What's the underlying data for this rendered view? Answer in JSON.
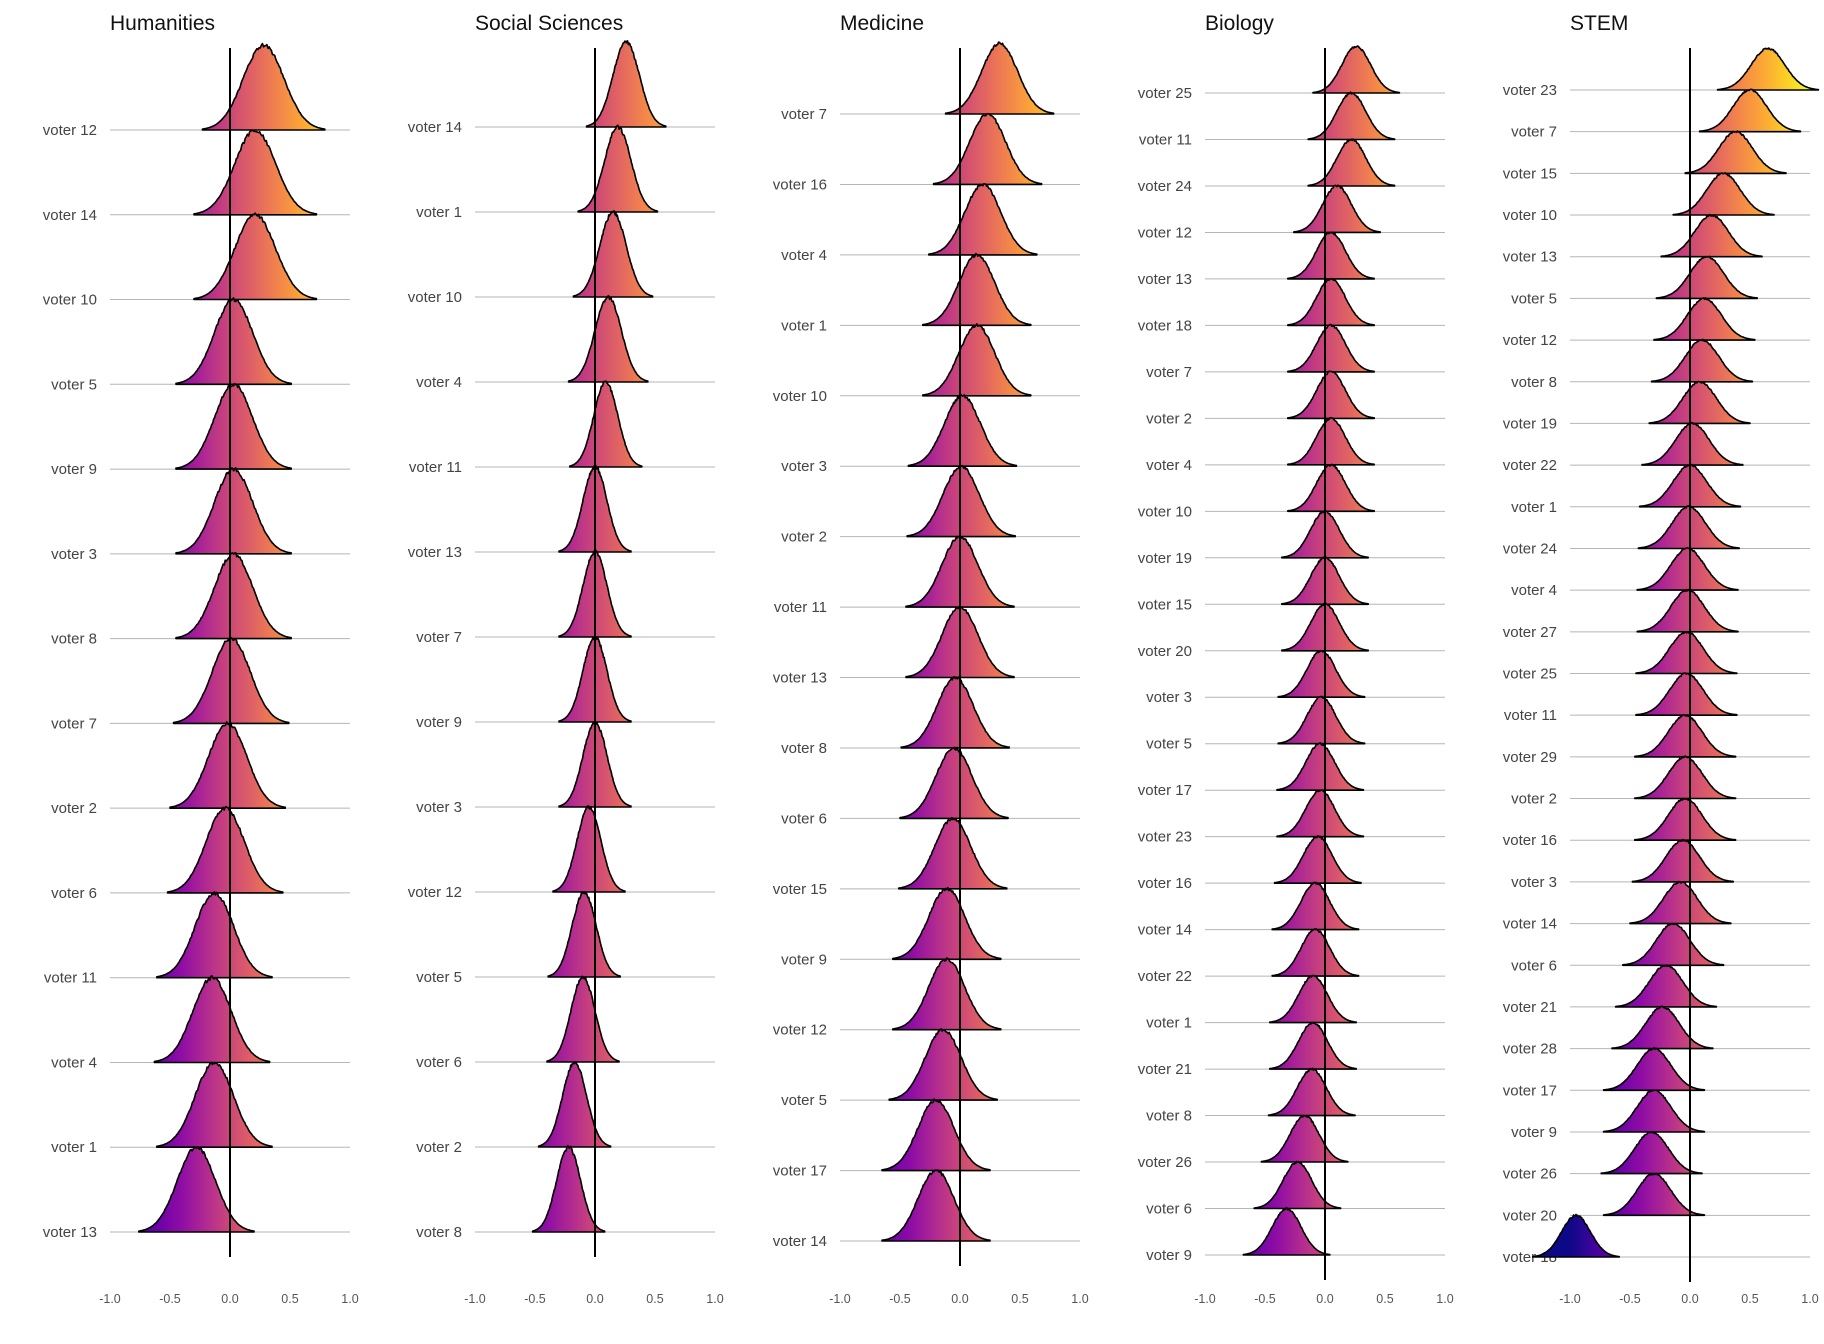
{
  "chart_data": {
    "type": "ridgeline",
    "xlim": [
      -1.0,
      1.0
    ],
    "x_ticks": [
      "-1.0",
      "-0.5",
      "0.0",
      "0.5",
      "1.0"
    ],
    "reference_line_x": 0.0,
    "color_scale": "plasma",
    "panels": [
      {
        "title": "Humanities",
        "series": [
          {
            "label": "voter 12",
            "mean": 0.28,
            "sd": 0.17
          },
          {
            "label": "voter 14",
            "mean": 0.21,
            "sd": 0.17
          },
          {
            "label": "voter 10",
            "mean": 0.21,
            "sd": 0.17
          },
          {
            "label": "voter 5",
            "mean": 0.03,
            "sd": 0.16
          },
          {
            "label": "voter 9",
            "mean": 0.03,
            "sd": 0.16
          },
          {
            "label": "voter 3",
            "mean": 0.03,
            "sd": 0.16
          },
          {
            "label": "voter 8",
            "mean": 0.03,
            "sd": 0.16
          },
          {
            "label": "voter 7",
            "mean": 0.01,
            "sd": 0.16
          },
          {
            "label": "voter 2",
            "mean": -0.02,
            "sd": 0.16
          },
          {
            "label": "voter 6",
            "mean": -0.04,
            "sd": 0.16
          },
          {
            "label": "voter 11",
            "mean": -0.13,
            "sd": 0.16
          },
          {
            "label": "voter 4",
            "mean": -0.15,
            "sd": 0.16
          },
          {
            "label": "voter 1",
            "mean": -0.13,
            "sd": 0.16
          },
          {
            "label": "voter 13",
            "mean": -0.28,
            "sd": 0.16
          }
        ]
      },
      {
        "title": "Social Sciences",
        "series": [
          {
            "label": "voter 14",
            "mean": 0.26,
            "sd": 0.11
          },
          {
            "label": "voter 1",
            "mean": 0.19,
            "sd": 0.11
          },
          {
            "label": "voter 10",
            "mean": 0.15,
            "sd": 0.11
          },
          {
            "label": "voter 4",
            "mean": 0.11,
            "sd": 0.11
          },
          {
            "label": "voter 11",
            "mean": 0.09,
            "sd": 0.1
          },
          {
            "label": "voter 13",
            "mean": 0.0,
            "sd": 0.1
          },
          {
            "label": "voter 7",
            "mean": 0.0,
            "sd": 0.1
          },
          {
            "label": "voter 9",
            "mean": 0.0,
            "sd": 0.1
          },
          {
            "label": "voter 3",
            "mean": 0.0,
            "sd": 0.1
          },
          {
            "label": "voter 12",
            "mean": -0.05,
            "sd": 0.1
          },
          {
            "label": "voter 5",
            "mean": -0.09,
            "sd": 0.1
          },
          {
            "label": "voter 6",
            "mean": -0.1,
            "sd": 0.1
          },
          {
            "label": "voter 2",
            "mean": -0.17,
            "sd": 0.1
          },
          {
            "label": "voter 8",
            "mean": -0.22,
            "sd": 0.1
          }
        ]
      },
      {
        "title": "Medicine",
        "series": [
          {
            "label": "voter 7",
            "mean": 0.33,
            "sd": 0.15
          },
          {
            "label": "voter 16",
            "mean": 0.23,
            "sd": 0.15
          },
          {
            "label": "voter 4",
            "mean": 0.19,
            "sd": 0.15
          },
          {
            "label": "voter 1",
            "mean": 0.14,
            "sd": 0.15
          },
          {
            "label": "voter 10",
            "mean": 0.14,
            "sd": 0.15
          },
          {
            "label": "voter 3",
            "mean": 0.02,
            "sd": 0.15
          },
          {
            "label": "voter 2",
            "mean": 0.01,
            "sd": 0.15
          },
          {
            "label": "voter 11",
            "mean": 0.0,
            "sd": 0.15
          },
          {
            "label": "voter 13",
            "mean": 0.0,
            "sd": 0.15
          },
          {
            "label": "voter 8",
            "mean": -0.04,
            "sd": 0.15
          },
          {
            "label": "voter 6",
            "mean": -0.05,
            "sd": 0.15
          },
          {
            "label": "voter 15",
            "mean": -0.06,
            "sd": 0.15
          },
          {
            "label": "voter 9",
            "mean": -0.11,
            "sd": 0.15
          },
          {
            "label": "voter 12",
            "mean": -0.11,
            "sd": 0.15
          },
          {
            "label": "voter 5",
            "mean": -0.14,
            "sd": 0.15
          },
          {
            "label": "voter 17",
            "mean": -0.2,
            "sd": 0.15
          },
          {
            "label": "voter 14",
            "mean": -0.2,
            "sd": 0.15
          }
        ]
      },
      {
        "title": "Biology",
        "series": [
          {
            "label": "voter 25",
            "mean": 0.26,
            "sd": 0.12
          },
          {
            "label": "voter 11",
            "mean": 0.22,
            "sd": 0.12
          },
          {
            "label": "voter 24",
            "mean": 0.22,
            "sd": 0.12
          },
          {
            "label": "voter 12",
            "mean": 0.1,
            "sd": 0.12
          },
          {
            "label": "voter 13",
            "mean": 0.05,
            "sd": 0.12
          },
          {
            "label": "voter 18",
            "mean": 0.05,
            "sd": 0.12
          },
          {
            "label": "voter 7",
            "mean": 0.05,
            "sd": 0.12
          },
          {
            "label": "voter 2",
            "mean": 0.05,
            "sd": 0.12
          },
          {
            "label": "voter 4",
            "mean": 0.05,
            "sd": 0.12
          },
          {
            "label": "voter 10",
            "mean": 0.05,
            "sd": 0.12
          },
          {
            "label": "voter 19",
            "mean": 0.0,
            "sd": 0.12
          },
          {
            "label": "voter 15",
            "mean": 0.0,
            "sd": 0.12
          },
          {
            "label": "voter 20",
            "mean": 0.0,
            "sd": 0.12
          },
          {
            "label": "voter 3",
            "mean": -0.03,
            "sd": 0.12
          },
          {
            "label": "voter 5",
            "mean": -0.03,
            "sd": 0.12
          },
          {
            "label": "voter 17",
            "mean": -0.04,
            "sd": 0.12
          },
          {
            "label": "voter 23",
            "mean": -0.04,
            "sd": 0.12
          },
          {
            "label": "voter 16",
            "mean": -0.06,
            "sd": 0.12
          },
          {
            "label": "voter 14",
            "mean": -0.08,
            "sd": 0.12
          },
          {
            "label": "voter 22",
            "mean": -0.08,
            "sd": 0.12
          },
          {
            "label": "voter 1",
            "mean": -0.1,
            "sd": 0.12
          },
          {
            "label": "voter 21",
            "mean": -0.1,
            "sd": 0.12
          },
          {
            "label": "voter 8",
            "mean": -0.11,
            "sd": 0.12
          },
          {
            "label": "voter 26",
            "mean": -0.17,
            "sd": 0.12
          },
          {
            "label": "voter 6",
            "mean": -0.23,
            "sd": 0.12
          },
          {
            "label": "voter 9",
            "mean": -0.32,
            "sd": 0.12
          }
        ]
      },
      {
        "title": "STEM",
        "series": [
          {
            "label": "voter 23",
            "mean": 0.65,
            "sd": 0.14
          },
          {
            "label": "voter 7",
            "mean": 0.5,
            "sd": 0.14
          },
          {
            "label": "voter 15",
            "mean": 0.38,
            "sd": 0.14
          },
          {
            "label": "voter 10",
            "mean": 0.28,
            "sd": 0.14
          },
          {
            "label": "voter 13",
            "mean": 0.18,
            "sd": 0.14
          },
          {
            "label": "voter 5",
            "mean": 0.14,
            "sd": 0.14
          },
          {
            "label": "voter 12",
            "mean": 0.12,
            "sd": 0.14
          },
          {
            "label": "voter 8",
            "mean": 0.1,
            "sd": 0.14
          },
          {
            "label": "voter 19",
            "mean": 0.08,
            "sd": 0.14
          },
          {
            "label": "voter 22",
            "mean": 0.02,
            "sd": 0.14
          },
          {
            "label": "voter 1",
            "mean": 0.0,
            "sd": 0.14
          },
          {
            "label": "voter 24",
            "mean": -0.01,
            "sd": 0.14
          },
          {
            "label": "voter 4",
            "mean": -0.02,
            "sd": 0.14
          },
          {
            "label": "voter 27",
            "mean": -0.02,
            "sd": 0.14
          },
          {
            "label": "voter 25",
            "mean": -0.03,
            "sd": 0.14
          },
          {
            "label": "voter 11",
            "mean": -0.03,
            "sd": 0.14
          },
          {
            "label": "voter 29",
            "mean": -0.04,
            "sd": 0.14
          },
          {
            "label": "voter 2",
            "mean": -0.04,
            "sd": 0.14
          },
          {
            "label": "voter 16",
            "mean": -0.04,
            "sd": 0.14
          },
          {
            "label": "voter 3",
            "mean": -0.06,
            "sd": 0.14
          },
          {
            "label": "voter 14",
            "mean": -0.08,
            "sd": 0.14
          },
          {
            "label": "voter 6",
            "mean": -0.14,
            "sd": 0.14
          },
          {
            "label": "voter 21",
            "mean": -0.2,
            "sd": 0.14
          },
          {
            "label": "voter 28",
            "mean": -0.23,
            "sd": 0.14
          },
          {
            "label": "voter 17",
            "mean": -0.3,
            "sd": 0.14
          },
          {
            "label": "voter 9",
            "mean": -0.3,
            "sd": 0.14
          },
          {
            "label": "voter 26",
            "mean": -0.32,
            "sd": 0.14
          },
          {
            "label": "voter 20",
            "mean": -0.3,
            "sd": 0.14
          },
          {
            "label": "voter 18",
            "mean": -0.95,
            "sd": 0.12
          }
        ]
      }
    ]
  }
}
